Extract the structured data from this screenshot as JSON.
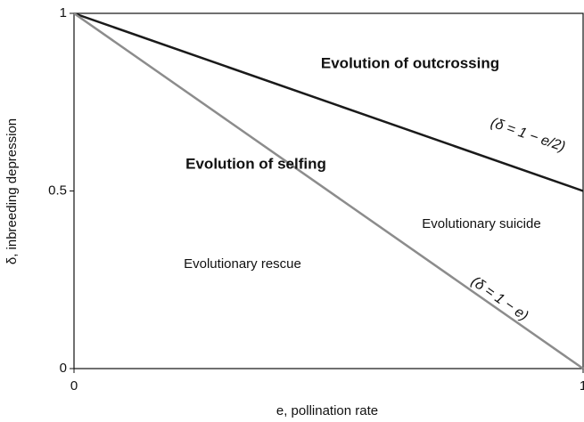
{
  "chart_data": {
    "type": "line",
    "xlabel": "e, pollination rate",
    "ylabel": "δ, inbreeding depression",
    "x": [
      0,
      1
    ],
    "series": [
      {
        "color": "#1a1a1a",
        "values": [
          1,
          0.5
        ]
      },
      {
        "color": "#8c8c8c",
        "values": [
          1,
          0
        ]
      }
    ],
    "xlim": [
      0,
      1
    ],
    "ylim": [
      0,
      1
    ],
    "xticks": [
      0,
      1
    ],
    "yticks": [
      0,
      0.5,
      1
    ],
    "grid": false,
    "annotations": [
      "Evolution of outcrossing",
      "Evolution of selfing",
      "Evolutionary suicide",
      "Evolutionary rescue",
      "(δ = 1 − e/2)",
      "(δ = 1 − e)"
    ]
  }
}
